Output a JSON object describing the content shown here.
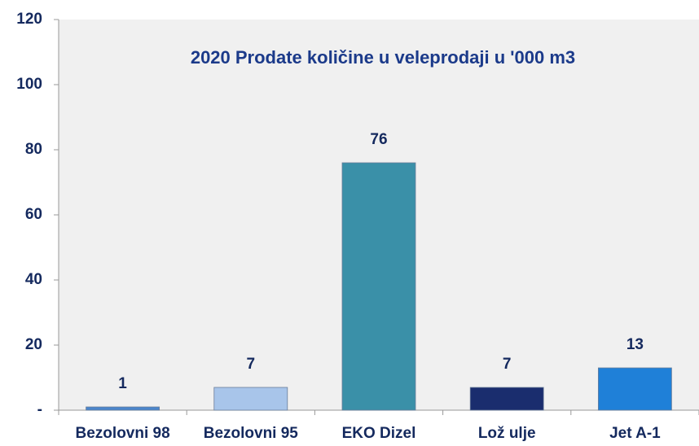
{
  "chart_data": {
    "type": "bar",
    "title": "2020 Prodate količine u veleprodaji u  '000 m3",
    "categories": [
      "Bezolovni 98",
      "Bezolovni 95",
      "EKO Dizel",
      "Lož ulje",
      "Jet A-1"
    ],
    "values": [
      1,
      7,
      76,
      7,
      13
    ],
    "colors": [
      "#4a86cc",
      "#a8c5ea",
      "#3a90a8",
      "#1a2d6e",
      "#1f80d8"
    ],
    "ylim": [
      0,
      120
    ],
    "yticks": [
      {
        "value": 0,
        "label": "-"
      },
      20,
      40,
      60,
      80,
      100,
      120
    ]
  }
}
